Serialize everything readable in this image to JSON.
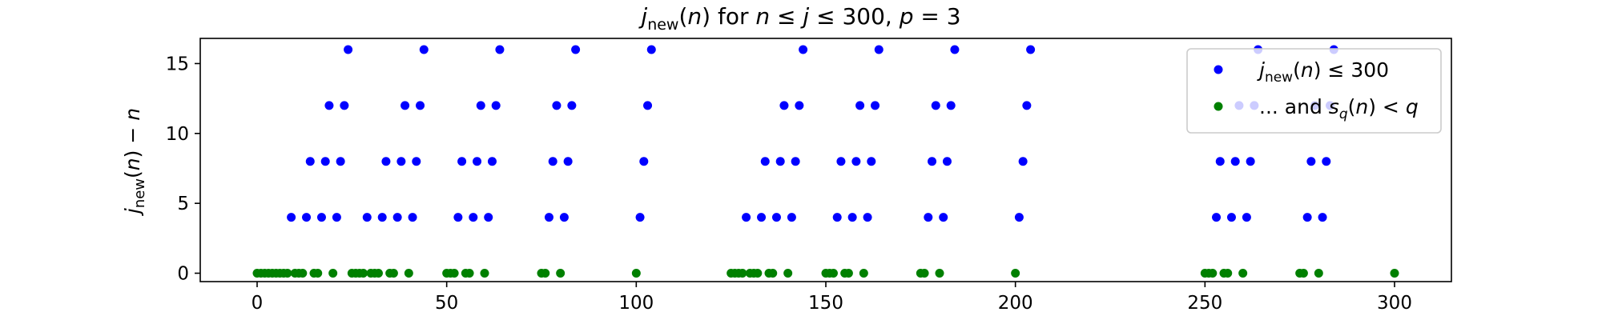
{
  "chart_data": {
    "type": "scatter",
    "title": "j_new(n) for n ≤ j ≤ 300, p = 3",
    "xlabel": "",
    "ylabel": "j_new(n) − n",
    "xlim": [
      -15,
      315
    ],
    "ylim": [
      -0.6,
      16.8
    ],
    "xticks": [
      0,
      50,
      100,
      150,
      200,
      250,
      300
    ],
    "yticks": [
      0,
      5,
      10,
      15
    ],
    "grid": false,
    "legend_position": "top-right",
    "colors": {
      "blue_series": "#0000ff",
      "green_series": "#008000"
    },
    "series": [
      {
        "name": "j_new(n) ≤ 300",
        "color": "#0000ff",
        "points": [
          [
            9,
            4
          ],
          [
            13,
            4
          ],
          [
            17,
            4
          ],
          [
            21,
            4
          ],
          [
            29,
            4
          ],
          [
            33,
            4
          ],
          [
            37,
            4
          ],
          [
            41,
            4
          ],
          [
            53,
            4
          ],
          [
            57,
            4
          ],
          [
            61,
            4
          ],
          [
            77,
            4
          ],
          [
            81,
            4
          ],
          [
            101,
            4
          ],
          [
            129,
            4
          ],
          [
            133,
            4
          ],
          [
            137,
            4
          ],
          [
            141,
            4
          ],
          [
            153,
            4
          ],
          [
            157,
            4
          ],
          [
            161,
            4
          ],
          [
            177,
            4
          ],
          [
            181,
            4
          ],
          [
            201,
            4
          ],
          [
            253,
            4
          ],
          [
            257,
            4
          ],
          [
            261,
            4
          ],
          [
            277,
            4
          ],
          [
            281,
            4
          ],
          [
            14,
            8
          ],
          [
            18,
            8
          ],
          [
            22,
            8
          ],
          [
            34,
            8
          ],
          [
            38,
            8
          ],
          [
            42,
            8
          ],
          [
            54,
            8
          ],
          [
            58,
            8
          ],
          [
            62,
            8
          ],
          [
            78,
            8
          ],
          [
            82,
            8
          ],
          [
            102,
            8
          ],
          [
            134,
            8
          ],
          [
            138,
            8
          ],
          [
            142,
            8
          ],
          [
            154,
            8
          ],
          [
            158,
            8
          ],
          [
            162,
            8
          ],
          [
            178,
            8
          ],
          [
            182,
            8
          ],
          [
            202,
            8
          ],
          [
            254,
            8
          ],
          [
            258,
            8
          ],
          [
            262,
            8
          ],
          [
            278,
            8
          ],
          [
            282,
            8
          ],
          [
            19,
            12
          ],
          [
            23,
            12
          ],
          [
            39,
            12
          ],
          [
            43,
            12
          ],
          [
            59,
            12
          ],
          [
            63,
            12
          ],
          [
            79,
            12
          ],
          [
            83,
            12
          ],
          [
            103,
            12
          ],
          [
            139,
            12
          ],
          [
            143,
            12
          ],
          [
            159,
            12
          ],
          [
            163,
            12
          ],
          [
            179,
            12
          ],
          [
            183,
            12
          ],
          [
            203,
            12
          ],
          [
            259,
            12
          ],
          [
            263,
            12
          ],
          [
            279,
            12
          ],
          [
            283,
            12
          ],
          [
            24,
            16
          ],
          [
            44,
            16
          ],
          [
            64,
            16
          ],
          [
            84,
            16
          ],
          [
            104,
            16
          ],
          [
            144,
            16
          ],
          [
            164,
            16
          ],
          [
            184,
            16
          ],
          [
            204,
            16
          ],
          [
            264,
            16
          ],
          [
            284,
            16
          ]
        ]
      },
      {
        "name": "... and s_q(n) < q",
        "color": "#008000",
        "points": [
          [
            0,
            0
          ],
          [
            1,
            0
          ],
          [
            2,
            0
          ],
          [
            3,
            0
          ],
          [
            4,
            0
          ],
          [
            5,
            0
          ],
          [
            6,
            0
          ],
          [
            7,
            0
          ],
          [
            8,
            0
          ],
          [
            10,
            0
          ],
          [
            11,
            0
          ],
          [
            12,
            0
          ],
          [
            15,
            0
          ],
          [
            16,
            0
          ],
          [
            20,
            0
          ],
          [
            25,
            0
          ],
          [
            26,
            0
          ],
          [
            27,
            0
          ],
          [
            28,
            0
          ],
          [
            30,
            0
          ],
          [
            31,
            0
          ],
          [
            32,
            0
          ],
          [
            35,
            0
          ],
          [
            36,
            0
          ],
          [
            40,
            0
          ],
          [
            50,
            0
          ],
          [
            51,
            0
          ],
          [
            52,
            0
          ],
          [
            55,
            0
          ],
          [
            56,
            0
          ],
          [
            60,
            0
          ],
          [
            75,
            0
          ],
          [
            76,
            0
          ],
          [
            80,
            0
          ],
          [
            100,
            0
          ],
          [
            125,
            0
          ],
          [
            126,
            0
          ],
          [
            127,
            0
          ],
          [
            128,
            0
          ],
          [
            130,
            0
          ],
          [
            131,
            0
          ],
          [
            132,
            0
          ],
          [
            135,
            0
          ],
          [
            136,
            0
          ],
          [
            140,
            0
          ],
          [
            150,
            0
          ],
          [
            151,
            0
          ],
          [
            152,
            0
          ],
          [
            155,
            0
          ],
          [
            156,
            0
          ],
          [
            160,
            0
          ],
          [
            175,
            0
          ],
          [
            176,
            0
          ],
          [
            180,
            0
          ],
          [
            200,
            0
          ],
          [
            250,
            0
          ],
          [
            251,
            0
          ],
          [
            252,
            0
          ],
          [
            255,
            0
          ],
          [
            256,
            0
          ],
          [
            260,
            0
          ],
          [
            275,
            0
          ],
          [
            276,
            0
          ],
          [
            280,
            0
          ],
          [
            300,
            0
          ]
        ]
      }
    ]
  }
}
